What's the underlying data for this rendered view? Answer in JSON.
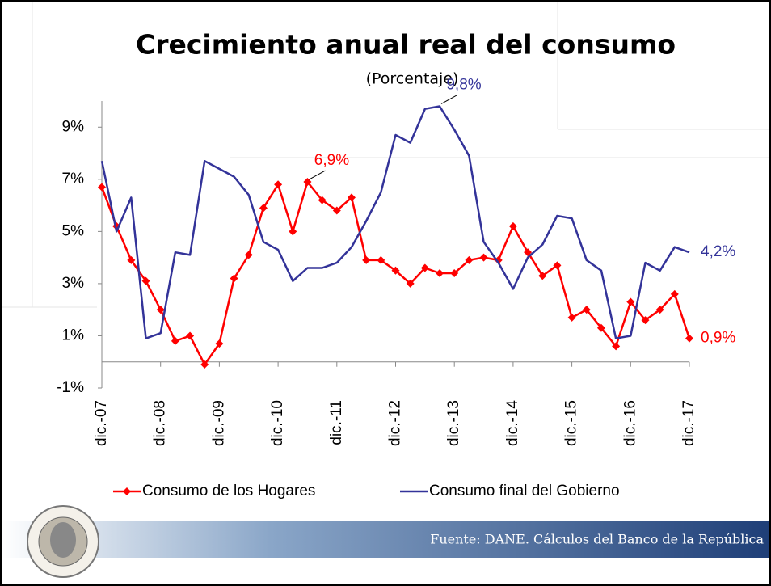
{
  "chart_data": {
    "type": "line",
    "title": "Crecimiento anual real del consumo",
    "subtitle": "(Porcentaje)",
    "source": "Fuente: DANE. Cálculos del Banco de la República",
    "categories": [
      "dic.-07",
      null,
      null,
      null,
      "dic.-08",
      null,
      null,
      null,
      "dic.-09",
      null,
      null,
      null,
      "dic.-10",
      null,
      null,
      null,
      "dic.-11",
      null,
      null,
      null,
      "dic.-12",
      null,
      null,
      null,
      "dic.-13",
      null,
      null,
      null,
      "dic.-14",
      null,
      null,
      null,
      "dic.-15",
      null,
      null,
      null,
      "dic.-16",
      null,
      null,
      null,
      "dic.-17"
    ],
    "series": [
      {
        "name": "Consumo de los Hogares",
        "color": "#ff0000",
        "marker": "diamond",
        "values": [
          6.7,
          5.2,
          3.9,
          3.1,
          2.0,
          0.8,
          1.0,
          -0.1,
          0.7,
          3.2,
          4.1,
          5.9,
          6.8,
          5.0,
          6.9,
          6.2,
          5.8,
          6.3,
          3.9,
          3.9,
          3.5,
          3.0,
          3.6,
          3.4,
          3.4,
          3.9,
          4.0,
          3.9,
          5.2,
          4.2,
          3.3,
          3.7,
          1.7,
          2.0,
          1.3,
          0.6,
          2.3,
          1.6,
          2.0,
          2.6,
          0.9
        ],
        "value_labels": [
          null,
          null,
          null,
          null,
          null,
          null,
          null,
          null,
          null,
          null,
          null,
          null,
          null,
          null,
          "6,9%",
          null,
          null,
          null,
          null,
          null,
          null,
          null,
          null,
          null,
          null,
          null,
          null,
          null,
          null,
          null,
          null,
          null,
          null,
          null,
          null,
          null,
          null,
          null,
          null,
          null,
          "0,9%"
        ]
      },
      {
        "name": "Consumo final del Gobierno",
        "color": "#333399",
        "values": [
          7.7,
          5.0,
          6.3,
          0.9,
          1.1,
          4.2,
          4.1,
          7.7,
          7.4,
          7.1,
          6.4,
          4.6,
          4.3,
          3.1,
          3.6,
          3.6,
          3.8,
          4.4,
          5.4,
          6.5,
          8.7,
          8.4,
          9.7,
          9.8,
          8.9,
          7.9,
          4.6,
          3.8,
          2.8,
          4.0,
          4.5,
          5.6,
          5.5,
          3.9,
          3.5,
          0.9,
          1.0,
          3.8,
          3.5,
          4.4,
          4.2
        ],
        "value_labels": [
          null,
          null,
          null,
          null,
          null,
          null,
          null,
          null,
          null,
          null,
          null,
          null,
          null,
          null,
          null,
          null,
          null,
          null,
          null,
          null,
          null,
          null,
          null,
          "9,8%",
          null,
          null,
          null,
          null,
          null,
          null,
          null,
          null,
          null,
          null,
          null,
          null,
          null,
          null,
          null,
          null,
          "4,2%"
        ]
      }
    ],
    "ylim": [
      -1,
      10
    ],
    "yticks": [
      {
        "value": -1,
        "label": "-1%"
      },
      {
        "value": 1,
        "label": "1%"
      },
      {
        "value": 3,
        "label": "3%"
      },
      {
        "value": 5,
        "label": "5%"
      },
      {
        "value": 7,
        "label": "7%"
      },
      {
        "value": 9,
        "label": "9%"
      }
    ],
    "grid": false,
    "legend": "bottom"
  }
}
